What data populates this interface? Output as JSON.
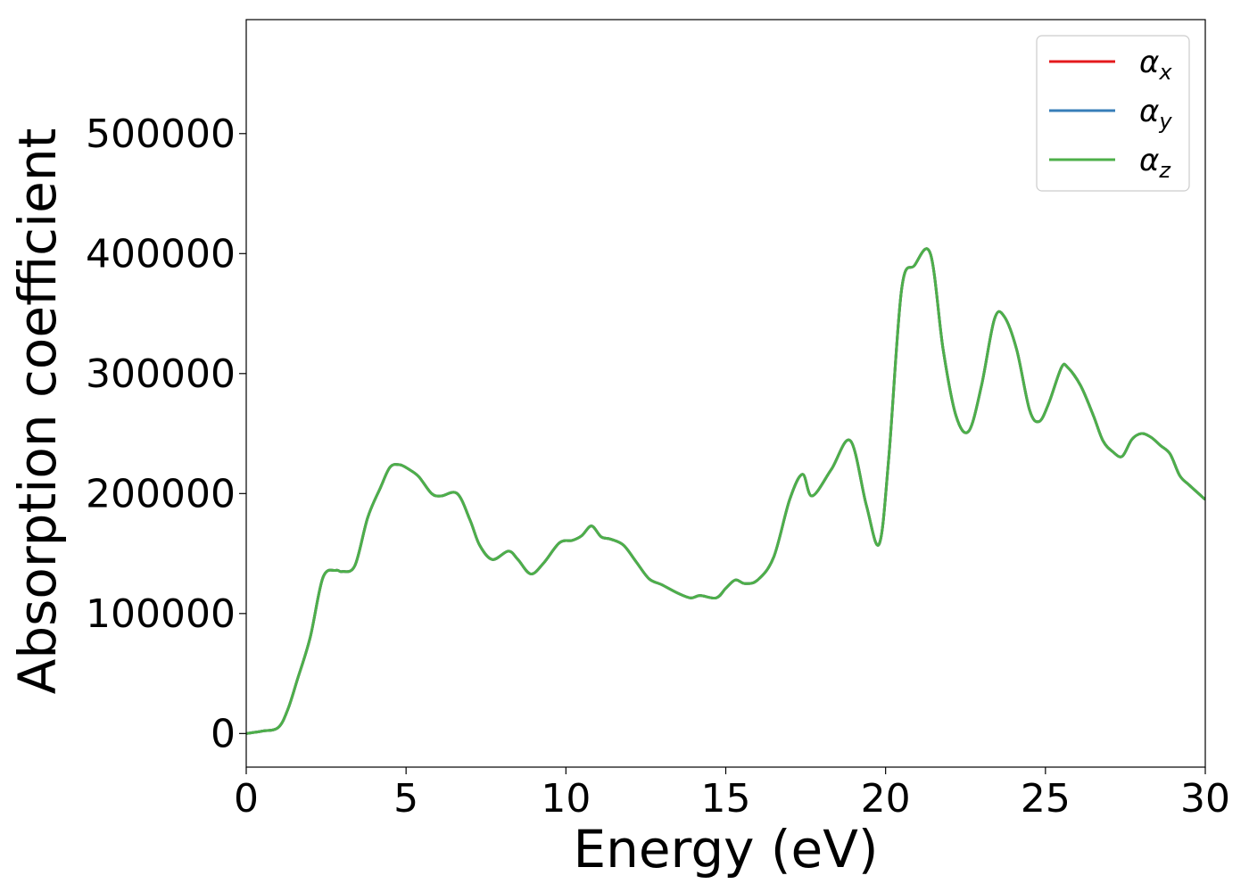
{
  "chart_data": {
    "type": "line",
    "xlabel": "Energy (eV)",
    "ylabel": "Absorption coefficient",
    "xlim": [
      0,
      30
    ],
    "ylim": [
      -28000,
      595000
    ],
    "xticks": [
      0,
      5,
      10,
      15,
      20,
      25,
      30
    ],
    "xtick_labels": [
      "0",
      "5",
      "10",
      "15",
      "20",
      "25",
      "30"
    ],
    "yticks": [
      0,
      100000,
      200000,
      300000,
      400000,
      500000
    ],
    "ytick_labels": [
      "0",
      "100000",
      "200000",
      "300000",
      "400000",
      "500000"
    ],
    "grid": false,
    "legend_position": "top-right",
    "x": [
      0,
      0.5,
      1.0,
      1.3,
      1.6,
      2.0,
      2.4,
      2.8,
      3.0,
      3.4,
      3.8,
      4.2,
      4.5,
      4.8,
      5.1,
      5.4,
      5.8,
      6.1,
      6.6,
      7.0,
      7.3,
      7.7,
      8.2,
      8.5,
      8.9,
      9.3,
      9.8,
      10.2,
      10.5,
      10.8,
      11.1,
      11.4,
      11.8,
      12.2,
      12.6,
      13.0,
      13.5,
      13.9,
      14.2,
      14.7,
      15.0,
      15.3,
      15.6,
      16.0,
      16.5,
      17.0,
      17.4,
      17.7,
      18.3,
      18.9,
      19.4,
      19.8,
      20.1,
      20.5,
      20.9,
      21.4,
      21.8,
      22.2,
      22.6,
      23.0,
      23.4,
      23.7,
      24.1,
      24.5,
      24.8,
      25.1,
      25.5,
      25.7,
      26.1,
      26.5,
      26.8,
      27.1,
      27.4,
      27.7,
      28.0,
      28.3,
      28.6,
      28.9,
      29.2,
      29.5,
      30.0
    ],
    "series": [
      {
        "name": "α_x",
        "label_base": "α",
        "label_sub": "x",
        "color": "#e41a1c",
        "values": [
          0,
          2000,
          5000,
          20000,
          45000,
          80000,
          130000,
          136000,
          135000,
          140000,
          180000,
          205000,
          222000,
          224000,
          220000,
          214000,
          200000,
          198000,
          200000,
          178000,
          157000,
          145000,
          152000,
          145000,
          133000,
          142000,
          159000,
          161000,
          165000,
          173000,
          164000,
          162000,
          157000,
          143000,
          129000,
          124000,
          117000,
          113000,
          115000,
          113000,
          121000,
          128000,
          125000,
          128000,
          147000,
          195000,
          216000,
          198000,
          220000,
          244000,
          190000,
          158000,
          230000,
          370000,
          390000,
          400000,
          320000,
          265000,
          252000,
          290000,
          345000,
          348000,
          320000,
          270000,
          260000,
          275000,
          305000,
          305000,
          290000,
          265000,
          244000,
          235000,
          231000,
          245000,
          250000,
          247000,
          240000,
          233000,
          215000,
          207000,
          195000
        ]
      },
      {
        "name": "α_y",
        "label_base": "α",
        "label_sub": "y",
        "color": "#377eb8",
        "values": [
          0,
          2000,
          5000,
          20000,
          45000,
          80000,
          130000,
          136000,
          135000,
          140000,
          180000,
          205000,
          222000,
          224000,
          220000,
          214000,
          200000,
          198000,
          200000,
          178000,
          157000,
          145000,
          152000,
          145000,
          133000,
          142000,
          159000,
          161000,
          165000,
          173000,
          164000,
          162000,
          157000,
          143000,
          129000,
          124000,
          117000,
          113000,
          115000,
          113000,
          121000,
          128000,
          125000,
          128000,
          147000,
          195000,
          216000,
          198000,
          220000,
          244000,
          190000,
          158000,
          230000,
          370000,
          390000,
          400000,
          320000,
          265000,
          252000,
          290000,
          345000,
          348000,
          320000,
          270000,
          260000,
          275000,
          305000,
          305000,
          290000,
          265000,
          244000,
          235000,
          231000,
          245000,
          250000,
          247000,
          240000,
          233000,
          215000,
          207000,
          195000
        ]
      },
      {
        "name": "α_z",
        "label_base": "α",
        "label_sub": "z",
        "color": "#4daf4a",
        "values": [
          0,
          2000,
          5000,
          20000,
          45000,
          80000,
          130000,
          136000,
          135000,
          140000,
          180000,
          205000,
          222000,
          224000,
          220000,
          214000,
          200000,
          198000,
          200000,
          178000,
          157000,
          145000,
          152000,
          145000,
          133000,
          142000,
          159000,
          161000,
          165000,
          173000,
          164000,
          162000,
          157000,
          143000,
          129000,
          124000,
          117000,
          113000,
          115000,
          113000,
          121000,
          128000,
          125000,
          128000,
          147000,
          195000,
          216000,
          198000,
          220000,
          244000,
          190000,
          158000,
          230000,
          370000,
          390000,
          400000,
          320000,
          265000,
          252000,
          290000,
          345000,
          348000,
          320000,
          270000,
          260000,
          275000,
          305000,
          305000,
          290000,
          265000,
          244000,
          235000,
          231000,
          245000,
          250000,
          247000,
          240000,
          233000,
          215000,
          207000,
          195000
        ]
      }
    ]
  }
}
